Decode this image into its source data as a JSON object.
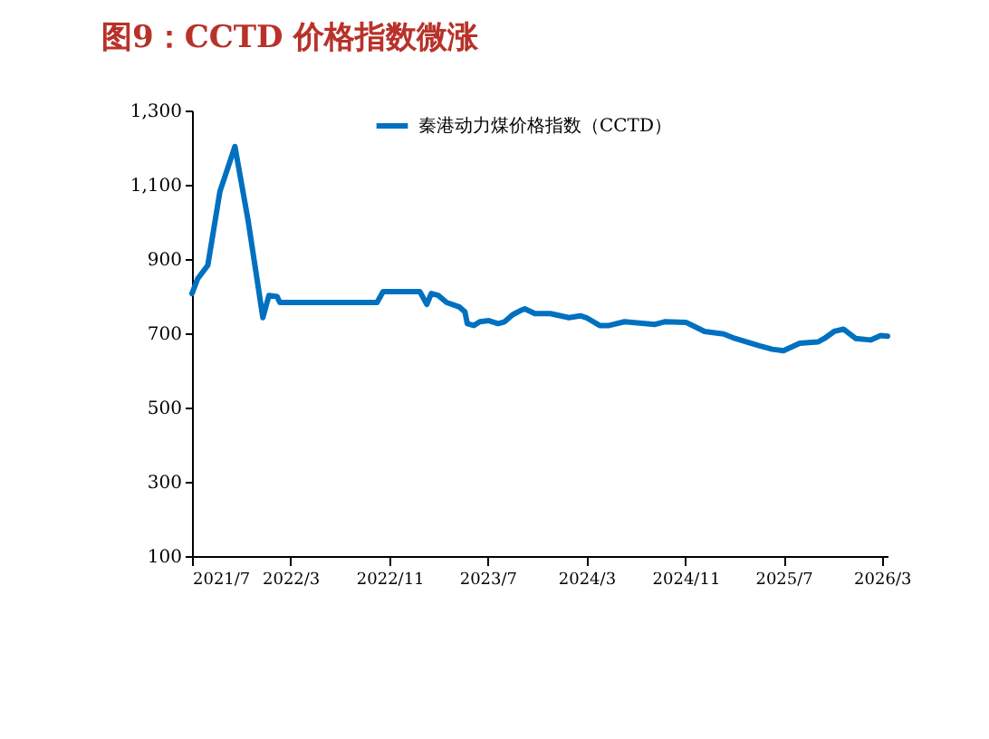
{
  "chart_data": {
    "type": "line",
    "title": "图9：CCTD 价格指数微涨",
    "x": [
      "2021-07-01",
      "2021-07-15",
      "2021-08-09",
      "2021-09-08",
      "2021-10-15",
      "2021-11-17",
      "2021-12-23",
      "2022-01-07",
      "2022-01-27",
      "2022-02-03",
      "2022-10-01",
      "2022-10-16",
      "2023-01-15",
      "2023-02-01",
      "2023-02-12",
      "2023-03-01",
      "2023-03-22",
      "2023-04-22",
      "2023-05-06",
      "2023-05-12",
      "2023-05-28",
      "2023-06-12",
      "2023-07-04",
      "2023-07-27",
      "2023-08-12",
      "2023-09-01",
      "2023-09-24",
      "2023-10-01",
      "2023-10-26",
      "2023-12-03",
      "2024-01-18",
      "2024-02-15",
      "2024-03-01",
      "2024-04-03",
      "2024-04-26",
      "2024-06-03",
      "2024-08-18",
      "2024-09-10",
      "2024-11-03",
      "2024-12-18",
      "2025-02-03",
      "2025-03-03",
      "2025-05-03",
      "2025-06-03",
      "2025-07-01",
      "2025-08-10",
      "2025-09-25",
      "2025-10-10",
      "2025-11-03",
      "2025-11-26",
      "2025-12-26",
      "2026-02-01",
      "2026-02-26",
      "2026-03-15"
    ],
    "series": [
      {
        "name": "秦港动力煤价格指数（CCTD）",
        "color": "#0070c0",
        "values": [
          807,
          847,
          883,
          1082,
          1203,
          1001,
          742,
          802,
          799,
          783,
          783,
          812,
          812,
          778,
          807,
          802,
          783,
          771,
          758,
          726,
          721,
          731,
          734,
          726,
          731,
          750,
          763,
          766,
          753,
          753,
          742,
          747,
          742,
          721,
          721,
          731,
          724,
          731,
          729,
          705,
          698,
          686,
          666,
          657,
          653,
          673,
          677,
          686,
          705,
          711,
          686,
          682,
          694,
          692
        ]
      }
    ],
    "xlim": [
      "2021-07-01",
      "2026-03-15"
    ],
    "xticks": [
      {
        "value": "2021-07-01",
        "label": "2021/7"
      },
      {
        "value": "2022-03-01",
        "label": "2022/3"
      },
      {
        "value": "2022-11-01",
        "label": "2022/11"
      },
      {
        "value": "2023-07-01",
        "label": "2023/7"
      },
      {
        "value": "2024-03-01",
        "label": "2024/3"
      },
      {
        "value": "2024-11-01",
        "label": "2024/11"
      },
      {
        "value": "2025-07-01",
        "label": "2025/7"
      },
      {
        "value": "2026-03-01",
        "label": "2026/3"
      }
    ],
    "ylim": [
      100,
      1300
    ],
    "yticks": [
      100,
      300,
      500,
      700,
      900,
      {
        "value": 1100,
        "label": "1,100"
      },
      {
        "value": 1300,
        "label": "1,300"
      }
    ],
    "grid": false,
    "legend": "top",
    "marker": "none",
    "line_style": "solid"
  }
}
